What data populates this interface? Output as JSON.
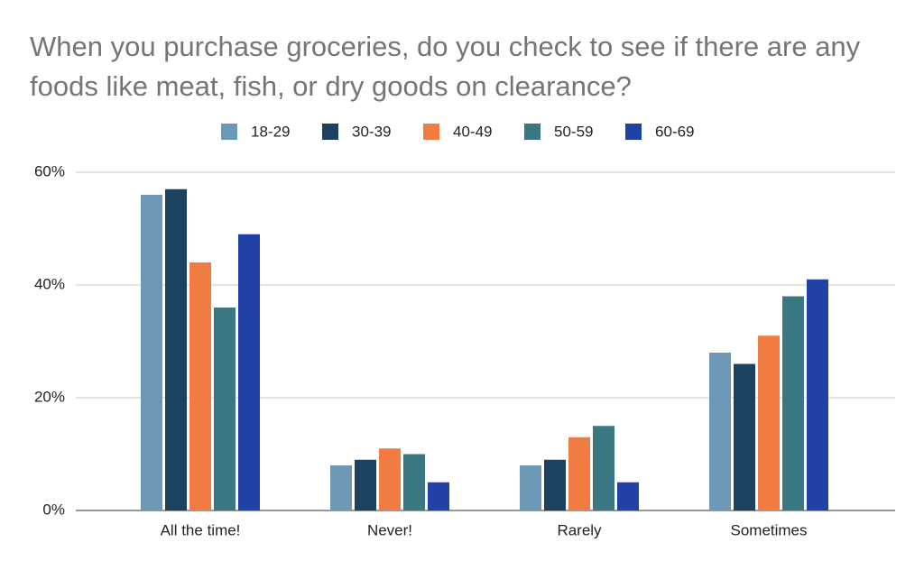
{
  "chart_data": {
    "type": "bar",
    "title": "When you purchase groceries, do you check to see if there are any foods like meat, fish, or dry goods on clearance?",
    "categories": [
      "All the time!",
      "Never!",
      "Rarely",
      "Sometimes"
    ],
    "series": [
      {
        "name": "18-29",
        "color": "#6d98b6",
        "values": [
          56,
          8,
          8,
          28
        ]
      },
      {
        "name": "30-39",
        "color": "#1c4260",
        "values": [
          57,
          9,
          9,
          26
        ]
      },
      {
        "name": "40-49",
        "color": "#f07c41",
        "values": [
          44,
          11,
          13,
          31
        ]
      },
      {
        "name": "50-59",
        "color": "#3b7782",
        "values": [
          36,
          10,
          15,
          38
        ]
      },
      {
        "name": "60-69",
        "color": "#2241a6",
        "values": [
          49,
          5,
          5,
          41
        ]
      }
    ],
    "ylim": [
      0,
      60
    ],
    "yticks": [
      {
        "value": 0,
        "label": "0%"
      },
      {
        "value": 20,
        "label": "20%"
      },
      {
        "value": 40,
        "label": "40%"
      },
      {
        "value": 60,
        "label": "60%"
      }
    ],
    "grid": true,
    "legend": "top"
  }
}
